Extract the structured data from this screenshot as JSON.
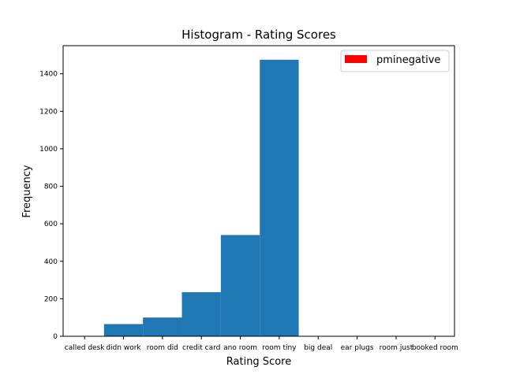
{
  "chart_data": {
    "type": "bar",
    "title": "Histogram - Rating Scores",
    "xlabel": "Rating Score",
    "ylabel": "Frequency",
    "categories": [
      "called desk",
      "didn work",
      "room did",
      "credit card",
      "ano room",
      "room tiny",
      "big deal",
      "ear plugs",
      "room just",
      "booked room"
    ],
    "bins": [
      {
        "start": 0.5,
        "end": 1.5,
        "value": 65
      },
      {
        "start": 1.5,
        "end": 2.5,
        "value": 100
      },
      {
        "start": 2.5,
        "end": 3.5,
        "value": 235
      },
      {
        "start": 3.5,
        "end": 4.5,
        "value": 540
      },
      {
        "start": 4.5,
        "end": 5.5,
        "value": 1475
      }
    ],
    "yticks": [
      0,
      200,
      400,
      600,
      800,
      1000,
      1200,
      1400
    ],
    "ylim": [
      0,
      1550
    ],
    "xlim": [
      -0.55,
      9.5
    ],
    "bar_color": "#1f77b4",
    "legend": {
      "label": "pminegative",
      "color": "#ff0000",
      "position": "top-right"
    },
    "grid": false
  }
}
